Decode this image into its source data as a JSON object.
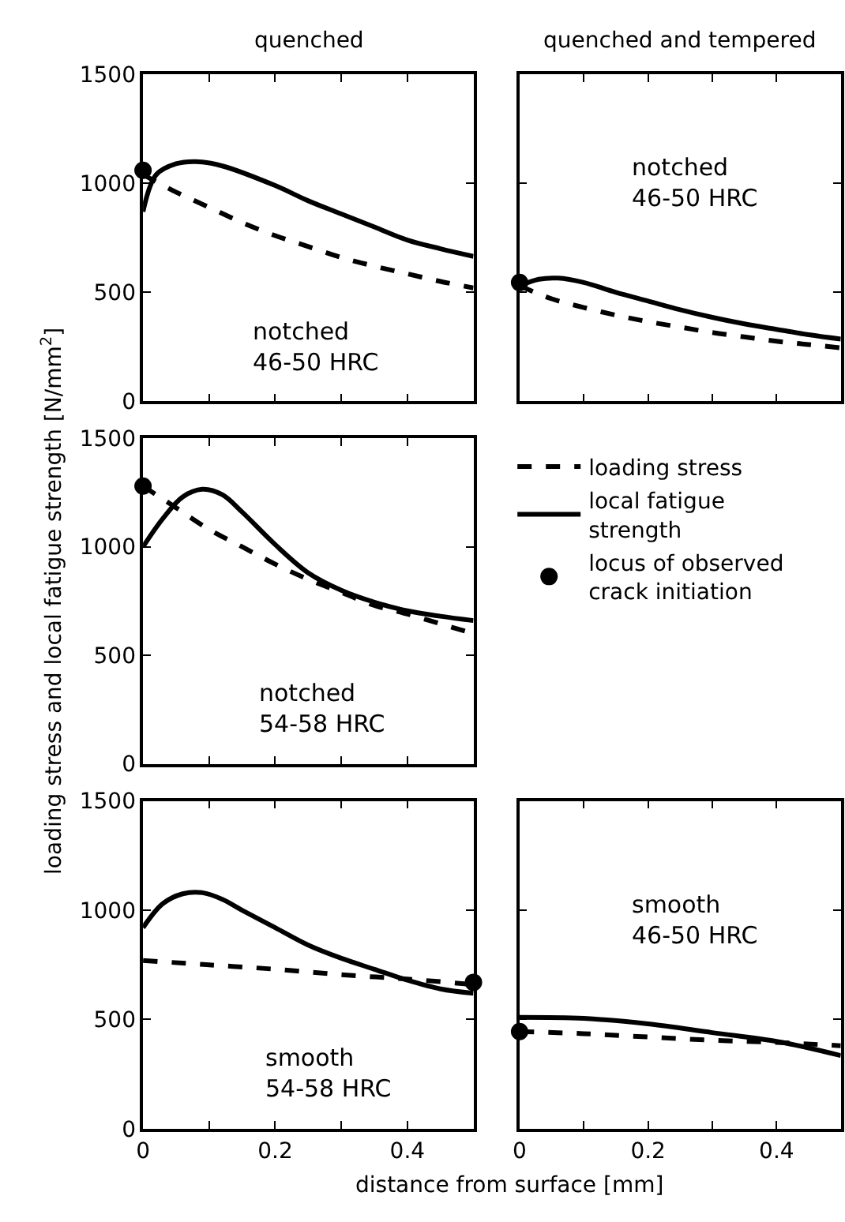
{
  "chart_data": [
    {
      "type": "line",
      "title": "quenched",
      "annotations": [
        "notched\n46-50 HRC"
      ],
      "xlim": [
        0,
        0.5
      ],
      "ylim": [
        0,
        1500
      ],
      "xticks": [
        0,
        {
          "value": 0.1,
          "label": null
        },
        0.2,
        {
          "value": 0.3,
          "label": null
        },
        0.4,
        {
          "value": 0.5,
          "label": null
        }
      ],
      "yticks": [
        0,
        500,
        1000,
        1500
      ],
      "tick_labels": "y",
      "legend": false,
      "series": [
        {
          "color": "#000000",
          "line_style": "dashed",
          "x": [
            0,
            0.05,
            0.1,
            0.15,
            0.2,
            0.25,
            0.3,
            0.35,
            0.4,
            0.45,
            0.5
          ],
          "values": [
            1040,
            960,
            890,
            820,
            760,
            710,
            660,
            620,
            585,
            550,
            520
          ]
        },
        {
          "color": "#000000",
          "line_style": "solid",
          "x": [
            0,
            0.02,
            0.05,
            0.08,
            0.12,
            0.2,
            0.25,
            0.3,
            0.35,
            0.4,
            0.45,
            0.5
          ],
          "values": [
            870,
            1040,
            1090,
            1100,
            1080,
            990,
            920,
            860,
            800,
            740,
            700,
            665
          ]
        },
        {
          "type": "scatter",
          "marker": "circle",
          "color": "#000000",
          "x": [
            0
          ],
          "values": [
            1060
          ]
        }
      ]
    },
    {
      "type": "line",
      "title": "quenched and tempered",
      "annotations": [
        "notched\n46-50 HRC"
      ],
      "xlim": [
        0,
        0.5
      ],
      "ylim": [
        0,
        1500
      ],
      "xticks": [
        0,
        {
          "value": 0.1,
          "label": null
        },
        0.2,
        {
          "value": 0.3,
          "label": null
        },
        0.4,
        {
          "value": 0.5,
          "label": null
        }
      ],
      "yticks": [
        0,
        500,
        1000,
        1500
      ],
      "tick_labels": false,
      "legend": false,
      "series": [
        {
          "color": "#000000",
          "line_style": "dashed",
          "x": [
            0,
            0.05,
            0.1,
            0.15,
            0.2,
            0.25,
            0.3,
            0.35,
            0.4,
            0.45,
            0.5
          ],
          "values": [
            530,
            470,
            430,
            395,
            365,
            340,
            315,
            295,
            275,
            260,
            245
          ]
        },
        {
          "color": "#000000",
          "line_style": "solid",
          "x": [
            0,
            0.03,
            0.06,
            0.1,
            0.15,
            0.2,
            0.25,
            0.3,
            0.35,
            0.4,
            0.45,
            0.5
          ],
          "values": [
            530,
            560,
            565,
            545,
            500,
            460,
            420,
            385,
            355,
            330,
            305,
            285
          ]
        },
        {
          "type": "scatter",
          "marker": "circle",
          "color": "#000000",
          "x": [
            0
          ],
          "values": [
            545
          ]
        }
      ]
    },
    {
      "type": "line",
      "ylabel": "loading stress and local fatigue strength [N/mm$^{2}$]",
      "annotations": [
        "notched\n54-58 HRC"
      ],
      "xlim": [
        0,
        0.5
      ],
      "ylim": [
        0,
        1500
      ],
      "xticks": [
        0,
        {
          "value": 0.1,
          "label": null
        },
        0.2,
        {
          "value": 0.3,
          "label": null
        },
        0.4,
        {
          "value": 0.5,
          "label": null
        }
      ],
      "yticks": [
        0,
        500,
        1000,
        1500
      ],
      "tick_labels": "y",
      "legend": "right",
      "series": [
        {
          "name": "loading stress",
          "color": "#000000",
          "line_style": "dashed",
          "x": [
            0,
            0.05,
            0.1,
            0.15,
            0.2,
            0.25,
            0.3,
            0.35,
            0.4,
            0.45,
            0.5
          ],
          "values": [
            1280,
            1180,
            1080,
            1000,
            920,
            850,
            790,
            730,
            690,
            645,
            600
          ]
        },
        {
          "name": "local fatigue strength",
          "color": "#000000",
          "line_style": "solid",
          "x": [
            0,
            0.03,
            0.06,
            0.09,
            0.12,
            0.15,
            0.2,
            0.25,
            0.3,
            0.35,
            0.4,
            0.45,
            0.5
          ],
          "values": [
            1000,
            1130,
            1230,
            1265,
            1240,
            1160,
            1010,
            880,
            800,
            745,
            705,
            680,
            660
          ]
        },
        {
          "name": "locus of observed crack initiation",
          "type": "scatter",
          "marker": "circle",
          "color": "#000000",
          "x": [
            0
          ],
          "values": [
            1280
          ]
        }
      ]
    },
    {
      "type": "line",
      "xlabel": "distance from surface [mm]",
      "annotations": [
        "smooth\n54-58 HRC"
      ],
      "xlim": [
        0,
        0.5
      ],
      "ylim": [
        0,
        1500
      ],
      "xticks": [
        0,
        {
          "value": 0.1,
          "label": null
        },
        0.2,
        {
          "value": 0.3,
          "label": null
        },
        0.4,
        {
          "value": 0.5,
          "label": null
        }
      ],
      "yticks": [
        0,
        500,
        1000,
        1500
      ],
      "legend": false,
      "series": [
        {
          "color": "#000000",
          "line_style": "dashed",
          "x": [
            0,
            0.1,
            0.2,
            0.3,
            0.4,
            0.5
          ],
          "values": [
            770,
            750,
            730,
            705,
            685,
            660
          ]
        },
        {
          "color": "#000000",
          "line_style": "solid",
          "x": [
            0,
            0.03,
            0.06,
            0.09,
            0.12,
            0.15,
            0.2,
            0.25,
            0.3,
            0.35,
            0.4,
            0.45,
            0.5
          ],
          "values": [
            920,
            1030,
            1075,
            1080,
            1050,
            1000,
            920,
            840,
            780,
            730,
            680,
            640,
            620
          ]
        },
        {
          "type": "scatter",
          "marker": "circle",
          "color": "#000000",
          "x": [
            0.5
          ],
          "values": [
            670
          ]
        }
      ]
    },
    {
      "type": "line",
      "annotations": [
        "smooth\n46-50 HRC"
      ],
      "xlim": [
        0,
        0.5
      ],
      "ylim": [
        0,
        1500
      ],
      "xticks": [
        0,
        {
          "value": 0.1,
          "label": null
        },
        0.2,
        {
          "value": 0.3,
          "label": null
        },
        0.4,
        {
          "value": 0.5,
          "label": null
        }
      ],
      "yticks": [
        0,
        500,
        1000,
        1500
      ],
      "tick_labels": "x",
      "legend": false,
      "series": [
        {
          "color": "#000000",
          "line_style": "dashed",
          "x": [
            0,
            0.1,
            0.2,
            0.3,
            0.4,
            0.5
          ],
          "values": [
            445,
            435,
            420,
            405,
            395,
            380
          ]
        },
        {
          "color": "#000000",
          "line_style": "solid",
          "x": [
            0,
            0.1,
            0.2,
            0.3,
            0.4,
            0.45,
            0.5
          ],
          "values": [
            510,
            505,
            480,
            440,
            400,
            370,
            335
          ]
        },
        {
          "type": "scatter",
          "marker": "circle",
          "color": "#000000",
          "x": [
            0
          ],
          "values": [
            445
          ]
        }
      ]
    }
  ]
}
